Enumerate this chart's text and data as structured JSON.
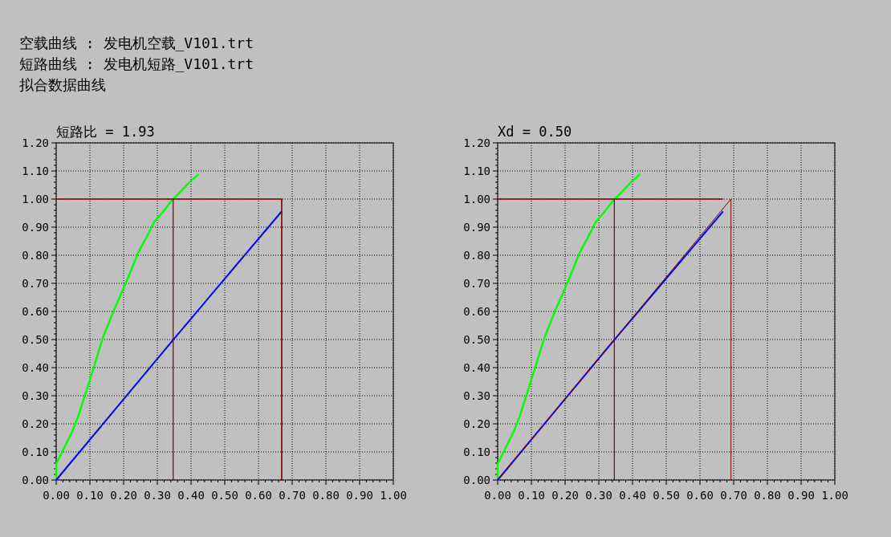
{
  "chart_data": [
    {
      "type": "line",
      "title": "短路比 = 1.93",
      "annotations": [
        "空载曲线 : 发电机空载_V101.trt",
        "短路曲线 : 发电机短路_V101.trt",
        "拟合数据曲线"
      ],
      "xlim": [
        0,
        1
      ],
      "ylim": [
        0,
        1.2
      ],
      "xticks": [
        {
          "value": 0,
          "label": "0.00"
        },
        {
          "value": 0.1,
          "label": "0.10"
        },
        {
          "value": 0.2,
          "label": "0.20"
        },
        {
          "value": 0.3,
          "label": "0.30"
        },
        {
          "value": 0.4,
          "label": "0.40"
        },
        {
          "value": 0.5,
          "label": "0.50"
        },
        {
          "value": 0.6,
          "label": "0.60"
        },
        {
          "value": 0.7,
          "label": "0.70"
        },
        {
          "value": 0.8,
          "label": "0.80"
        },
        {
          "value": 0.9,
          "label": "0.90"
        },
        {
          "value": 1,
          "label": "1.00"
        }
      ],
      "yticks": [
        {
          "value": 0,
          "label": "0.00"
        },
        {
          "value": 0.1,
          "label": "0.10"
        },
        {
          "value": 0.2,
          "label": "0.20"
        },
        {
          "value": 0.3,
          "label": "0.30"
        },
        {
          "value": 0.4,
          "label": "0.40"
        },
        {
          "value": 0.5,
          "label": "0.50"
        },
        {
          "value": 0.6,
          "label": "0.60"
        },
        {
          "value": 0.7,
          "label": "0.70"
        },
        {
          "value": 0.8,
          "label": "0.80"
        },
        {
          "value": 0.9,
          "label": "0.90"
        },
        {
          "value": 1,
          "label": "1.00"
        },
        {
          "value": 1.1,
          "label": "1.10"
        },
        {
          "value": 1.2,
          "label": "1.20"
        }
      ],
      "grid": true,
      "series": [
        {
          "color": "#00ff00",
          "x": [
            0,
            0,
            0.048,
            0.064,
            0.088,
            0.112,
            0.139,
            0.171,
            0.199,
            0.219,
            0.243,
            0.267,
            0.291,
            0.315,
            0.343,
            0.375,
            0.398,
            0.421
          ],
          "values": [
            0,
            0.057,
            0.174,
            0.222,
            0.312,
            0.403,
            0.508,
            0.604,
            0.68,
            0.737,
            0.809,
            0.862,
            0.919,
            0.952,
            0.995,
            1.034,
            1.063,
            1.087
          ]
        },
        {
          "color": "#0000ff",
          "x": [
            0,
            0.347,
            0.668
          ],
          "values": [
            0,
            0.499,
            0.955
          ]
        },
        {
          "color": "#800000",
          "x": [
            0,
            0.669,
            0.669
          ],
          "values": [
            1,
            1,
            0
          ]
        },
        {
          "color": "#800000",
          "x": [
            0.347,
            0.347
          ],
          "values": [
            0,
            1
          ]
        }
      ]
    },
    {
      "type": "line",
      "title": "Xd = 0.50",
      "xlim": [
        0,
        1
      ],
      "ylim": [
        0,
        1.2
      ],
      "xticks": [
        {
          "value": 0,
          "label": "0.00"
        },
        {
          "value": 0.1,
          "label": "0.10"
        },
        {
          "value": 0.2,
          "label": "0.20"
        },
        {
          "value": 0.3,
          "label": "0.30"
        },
        {
          "value": 0.4,
          "label": "0.40"
        },
        {
          "value": 0.5,
          "label": "0.50"
        },
        {
          "value": 0.6,
          "label": "0.60"
        },
        {
          "value": 0.7,
          "label": "0.70"
        },
        {
          "value": 0.8,
          "label": "0.80"
        },
        {
          "value": 0.9,
          "label": "0.90"
        },
        {
          "value": 1,
          "label": "1.00"
        }
      ],
      "yticks": [
        {
          "value": 0,
          "label": "0.00"
        },
        {
          "value": 0.1,
          "label": "0.10"
        },
        {
          "value": 0.2,
          "label": "0.20"
        },
        {
          "value": 0.3,
          "label": "0.30"
        },
        {
          "value": 0.4,
          "label": "0.40"
        },
        {
          "value": 0.5,
          "label": "0.50"
        },
        {
          "value": 0.6,
          "label": "0.60"
        },
        {
          "value": 0.7,
          "label": "0.70"
        },
        {
          "value": 0.8,
          "label": "0.80"
        },
        {
          "value": 0.9,
          "label": "0.90"
        },
        {
          "value": 1,
          "label": "1.00"
        },
        {
          "value": 1.1,
          "label": "1.10"
        },
        {
          "value": 1.2,
          "label": "1.20"
        }
      ],
      "grid": true,
      "series": [
        {
          "color": "#00ff00",
          "x": [
            0,
            0,
            0.048,
            0.064,
            0.088,
            0.112,
            0.139,
            0.171,
            0.199,
            0.219,
            0.243,
            0.267,
            0.291,
            0.315,
            0.343,
            0.375,
            0.398,
            0.421
          ],
          "values": [
            0,
            0.057,
            0.174,
            0.222,
            0.312,
            0.403,
            0.508,
            0.604,
            0.68,
            0.737,
            0.809,
            0.862,
            0.919,
            0.952,
            0.995,
            1.034,
            1.063,
            1.087
          ]
        },
        {
          "color": "#0000ff",
          "x": [
            0,
            0.346,
            0.667
          ],
          "values": [
            0,
            0.499,
            0.954
          ]
        },
        {
          "color": "#800000",
          "x": [
            0,
            0.667
          ],
          "values": [
            1,
            1
          ]
        },
        {
          "color": "#800000",
          "x": [
            0.346,
            0.346
          ],
          "values": [
            0,
            1
          ]
        },
        {
          "color": "#800000",
          "x": [
            0,
            0.692,
            0.692
          ],
          "values": [
            0,
            1,
            0
          ]
        }
      ]
    }
  ]
}
